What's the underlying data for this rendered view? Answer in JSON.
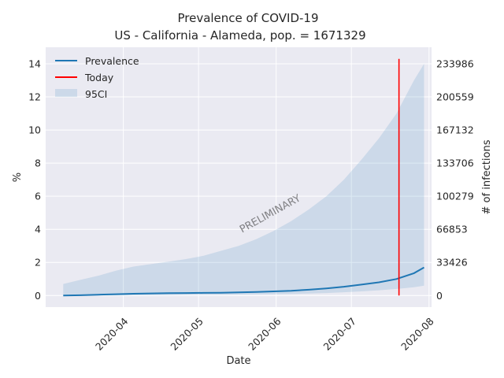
{
  "chart_data": {
    "type": "line",
    "title": "Prevalence of COVID-19",
    "subtitle": "US - California - Alameda, pop. = 1671329",
    "xlabel": "Date",
    "ylabel": "%",
    "ylabel_right": "# of infections",
    "watermark": "PRELIMINARY",
    "x_ticks": [
      "2020-04",
      "2020-05",
      "2020-06",
      "2020-07",
      "2020-08"
    ],
    "y_ticks": [
      0,
      2,
      4,
      6,
      8,
      10,
      12,
      14
    ],
    "y_ticks_right": [
      "0",
      "33426",
      "66853",
      "100279",
      "133706",
      "167132",
      "200559",
      "233986"
    ],
    "xlim": [
      "2020-03-01",
      "2020-08-02"
    ],
    "ylim": [
      -0.7,
      15.0
    ],
    "grid": true,
    "legend": {
      "position": "upper-left",
      "entries": [
        "Prevalence",
        "Today",
        "95CI"
      ]
    },
    "colors": {
      "prevalence": "#1f77b4",
      "today": "#ff0000",
      "ci": "#1f77b4",
      "background": "#eaeaf2",
      "grid": "#ffffff"
    },
    "today": "2020-07-20",
    "series": [
      {
        "name": "Prevalence",
        "x": [
          "2020-03-08",
          "2020-03-15",
          "2020-03-22",
          "2020-03-29",
          "2020-04-05",
          "2020-04-12",
          "2020-04-19",
          "2020-04-26",
          "2020-05-03",
          "2020-05-10",
          "2020-05-17",
          "2020-05-24",
          "2020-05-31",
          "2020-06-07",
          "2020-06-14",
          "2020-06-21",
          "2020-06-28",
          "2020-07-05",
          "2020-07-12",
          "2020-07-19",
          "2020-07-26",
          "2020-07-30"
        ],
        "values": [
          0.0,
          0.02,
          0.05,
          0.08,
          0.11,
          0.13,
          0.14,
          0.15,
          0.16,
          0.17,
          0.19,
          0.22,
          0.25,
          0.29,
          0.35,
          0.43,
          0.53,
          0.66,
          0.8,
          1.0,
          1.35,
          1.7
        ]
      }
    ],
    "ci": {
      "name": "95CI",
      "x": [
        "2020-03-08",
        "2020-03-15",
        "2020-03-22",
        "2020-03-29",
        "2020-04-05",
        "2020-04-12",
        "2020-04-19",
        "2020-04-26",
        "2020-05-03",
        "2020-05-10",
        "2020-05-17",
        "2020-05-24",
        "2020-05-31",
        "2020-06-07",
        "2020-06-14",
        "2020-06-21",
        "2020-06-28",
        "2020-07-05",
        "2020-07-12",
        "2020-07-19",
        "2020-07-26",
        "2020-07-30"
      ],
      "lower": [
        0.0,
        0.0,
        0.01,
        0.01,
        0.02,
        0.03,
        0.03,
        0.04,
        0.04,
        0.05,
        0.06,
        0.07,
        0.08,
        0.1,
        0.12,
        0.15,
        0.2,
        0.25,
        0.32,
        0.4,
        0.5,
        0.6
      ],
      "upper": [
        0.7,
        0.95,
        1.2,
        1.5,
        1.75,
        1.9,
        2.05,
        2.2,
        2.4,
        2.7,
        3.0,
        3.4,
        3.9,
        4.5,
        5.2,
        6.0,
        7.0,
        8.2,
        9.5,
        11.0,
        13.0,
        14.0
      ]
    }
  }
}
